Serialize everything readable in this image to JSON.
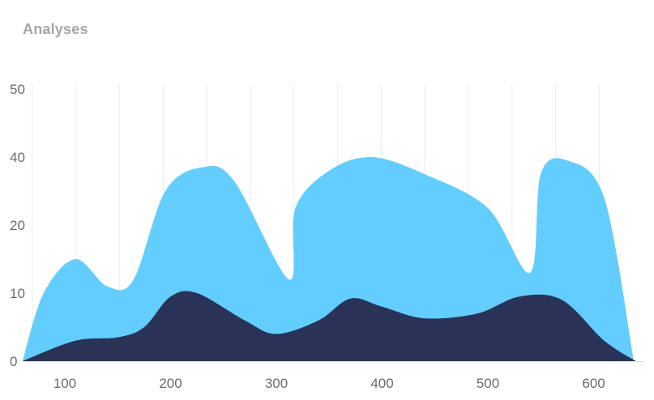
{
  "header": {
    "title": "Analyses"
  },
  "chart_data": {
    "type": "area",
    "title": "Analyses",
    "xlabel": "",
    "ylabel": "",
    "x_ticks": [
      "100",
      "200",
      "300",
      "400",
      "500",
      "600"
    ],
    "y_ticks": [
      "0",
      "10",
      "20",
      "40",
      "50"
    ],
    "grid": true,
    "series": [
      {
        "color": "#63cdfd",
        "points": [
          {
            "x": 60,
            "y": 0
          },
          {
            "x": 80,
            "y": 10
          },
          {
            "x": 110,
            "y": 15
          },
          {
            "x": 140,
            "y": 11
          },
          {
            "x": 165,
            "y": 12
          },
          {
            "x": 195,
            "y": 30
          },
          {
            "x": 230,
            "y": 37
          },
          {
            "x": 260,
            "y": 33
          },
          {
            "x": 312,
            "y": 12
          },
          {
            "x": 318,
            "y": 25
          },
          {
            "x": 350,
            "y": 36
          },
          {
            "x": 390,
            "y": 40
          },
          {
            "x": 440,
            "y": 35
          },
          {
            "x": 500,
            "y": 25
          },
          {
            "x": 540,
            "y": 13
          },
          {
            "x": 550,
            "y": 35
          },
          {
            "x": 575,
            "y": 39
          },
          {
            "x": 610,
            "y": 28
          },
          {
            "x": 638,
            "y": 0
          }
        ]
      },
      {
        "color": "#283357",
        "points": [
          {
            "x": 60,
            "y": 0
          },
          {
            "x": 110,
            "y": 3
          },
          {
            "x": 150,
            "y": 3.5
          },
          {
            "x": 175,
            "y": 5
          },
          {
            "x": 200,
            "y": 9.5
          },
          {
            "x": 225,
            "y": 10
          },
          {
            "x": 270,
            "y": 6
          },
          {
            "x": 300,
            "y": 4
          },
          {
            "x": 340,
            "y": 6
          },
          {
            "x": 370,
            "y": 9.2
          },
          {
            "x": 400,
            "y": 8
          },
          {
            "x": 440,
            "y": 6.3
          },
          {
            "x": 490,
            "y": 7
          },
          {
            "x": 530,
            "y": 9.5
          },
          {
            "x": 570,
            "y": 9
          },
          {
            "x": 610,
            "y": 3
          },
          {
            "x": 640,
            "y": 0
          }
        ]
      }
    ]
  }
}
